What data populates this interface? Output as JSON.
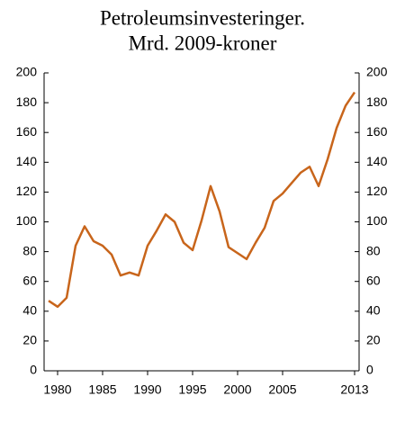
{
  "chart_data": {
    "type": "line",
    "title": "Petroleumsinvesteringer.",
    "subtitle": "Mrd. 2009-kroner",
    "x": [
      1979,
      1980,
      1981,
      1982,
      1983,
      1984,
      1985,
      1986,
      1987,
      1988,
      1989,
      1990,
      1991,
      1992,
      1993,
      1994,
      1995,
      1996,
      1997,
      1998,
      1999,
      2000,
      2001,
      2002,
      2003,
      2004,
      2005,
      2006,
      2007,
      2008,
      2009,
      2010,
      2011,
      2012,
      2013
    ],
    "series": [
      {
        "name": "Petroleumsinvesteringer",
        "color": "#c8651b",
        "values": [
          47,
          43,
          49,
          84,
          97,
          87,
          84,
          78,
          64,
          66,
          64,
          84,
          94,
          105,
          100,
          86,
          81,
          101,
          124,
          107,
          83,
          79,
          75,
          86,
          96,
          114,
          119,
          126,
          133,
          137,
          124,
          142,
          163,
          178,
          187
        ]
      }
    ],
    "xlim": [
      1978.5,
      2013.5
    ],
    "xticks": [
      1980,
      1985,
      1990,
      1995,
      2000,
      2005,
      2013
    ],
    "ylim": [
      0,
      200
    ],
    "yticks": [
      0,
      20,
      40,
      60,
      80,
      100,
      120,
      140,
      160,
      180,
      200
    ],
    "y2lim": [
      0,
      200
    ],
    "y2ticks": [
      0,
      20,
      40,
      60,
      80,
      100,
      120,
      140,
      160,
      180,
      200
    ]
  }
}
